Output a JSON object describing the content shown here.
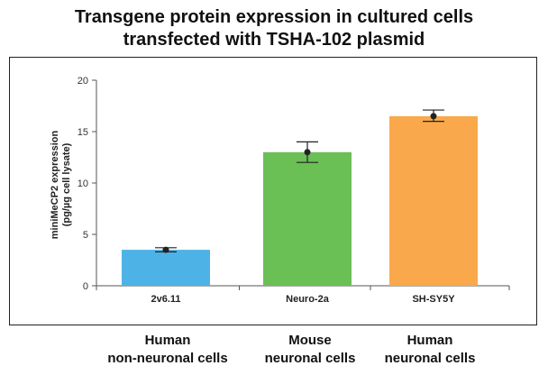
{
  "title_lines": [
    "Transgene protein expression in cultured cells",
    "transfected with TSHA-102 plasmid"
  ],
  "chart_data": {
    "type": "bar",
    "title": "Transgene protein expression in cultured cells transfected with TSHA-102 plasmid",
    "ylabel_lines": [
      "miniMeCP2 expression",
      "(pg/µg cell lysate)"
    ],
    "xlabel": "",
    "ylim": [
      0,
      20
    ],
    "yticks": [
      0,
      5,
      10,
      15,
      20
    ],
    "categories": [
      "2v6.11",
      "Neuro-2a",
      "SH-SY5Y"
    ],
    "values": [
      3.5,
      13.0,
      16.5
    ],
    "error_low": [
      3.3,
      12.0,
      16.0
    ],
    "error_high": [
      3.7,
      14.0,
      17.1
    ],
    "colors": [
      "#4db3e6",
      "#6abf55",
      "#f9a94b"
    ],
    "grid": false
  },
  "cell_groups": [
    {
      "line1": "Human",
      "line2": "non-neuronal cells"
    },
    {
      "line1": "Mouse",
      "line2": "neuronal cells"
    },
    {
      "line1": "Human",
      "line2": "neuronal cells"
    }
  ]
}
